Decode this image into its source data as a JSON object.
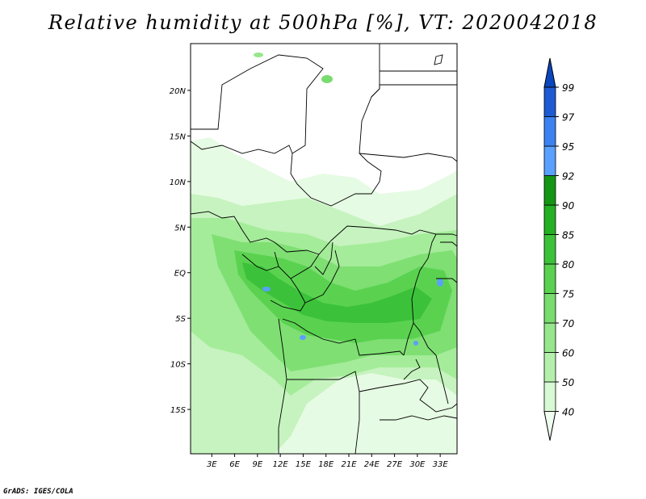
{
  "title": "Relative humidity at 500hPa [%], VT: 2020042018",
  "credit": "GrADS: IGES/COLA",
  "map": {
    "lat_range": [
      -20,
      25
    ],
    "lon_range": [
      0,
      35
    ],
    "lat_ticks": [
      "20N",
      "15N",
      "10N",
      "5N",
      "EQ",
      "5S",
      "10S",
      "15S"
    ],
    "lon_ticks": [
      "3E",
      "6E",
      "9E",
      "12E",
      "15E",
      "18E",
      "21E",
      "24E",
      "27E",
      "30E",
      "33E"
    ]
  },
  "colorbar": {
    "labels": [
      "40",
      "50",
      "60",
      "70",
      "75",
      "80",
      "85",
      "90",
      "92",
      "95",
      "97",
      "99"
    ],
    "colors": [
      "#f0fff0",
      "#d7f9d3",
      "#b4f0ab",
      "#96e68c",
      "#78dc6e",
      "#5ad250",
      "#3cc23a",
      "#23b023",
      "#149614",
      "#5aa0ff",
      "#3c82f0",
      "#1e5ad2",
      "#0a46be"
    ]
  }
}
